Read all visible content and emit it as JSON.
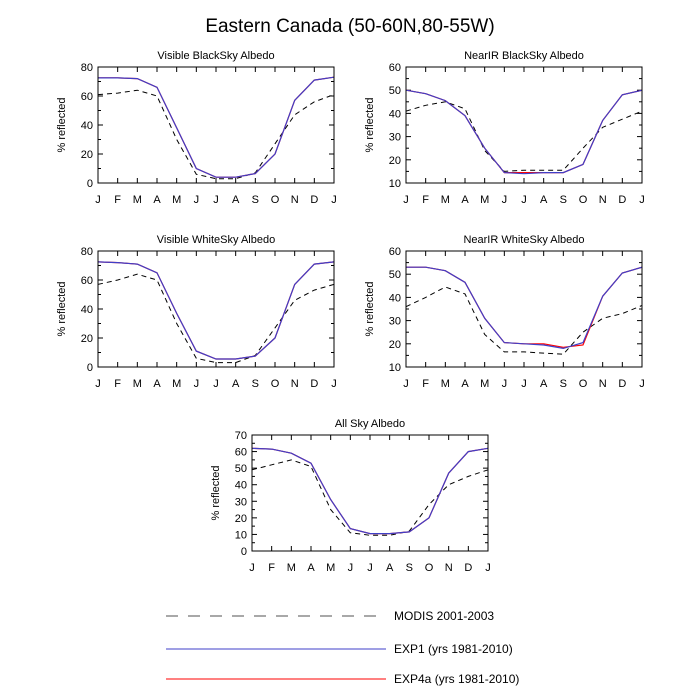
{
  "figure": {
    "title": "Eastern Canada (50-60N,80-55W)"
  },
  "legend": [
    {
      "label": "MODIS 2001-2003",
      "color": "#000000",
      "dash": true
    },
    {
      "label": "EXP1 (yrs 1981-2010)",
      "color": "#3f3fc8",
      "dash": false
    },
    {
      "label": "EXP4a (yrs 1981-2010)",
      "color": "#ff0000",
      "dash": false
    }
  ],
  "chart_data": [
    {
      "type": "line",
      "title": "Visible BlackSky Albedo",
      "ylabel": "% reflected",
      "categories": [
        "J",
        "F",
        "M",
        "A",
        "M",
        "J",
        "J",
        "A",
        "S",
        "O",
        "N",
        "D",
        "J"
      ],
      "ylim": [
        0,
        80
      ],
      "yticks": [
        0,
        20,
        40,
        60,
        80
      ],
      "series": [
        {
          "name": "MODIS 2001-2003",
          "color": "#000000",
          "dash": true,
          "values": [
            61,
            62,
            64,
            60,
            30,
            6,
            3,
            3,
            7,
            27,
            47,
            56,
            61
          ]
        },
        {
          "name": "EXP4a (yrs 1981-2010)",
          "color": "#ff0000",
          "dash": false,
          "values": [
            72.5,
            72.5,
            72,
            66,
            38,
            10,
            4,
            4,
            6.5,
            20,
            57,
            71,
            73
          ]
        },
        {
          "name": "EXP1 (yrs 1981-2010)",
          "color": "#3f3fc8",
          "dash": false,
          "values": [
            72.5,
            72.5,
            72,
            66,
            38,
            10,
            4,
            4,
            6.5,
            20,
            57,
            71,
            73
          ]
        }
      ]
    },
    {
      "type": "line",
      "title": "NearIR BlackSky Albedo",
      "ylabel": "% reflected",
      "categories": [
        "J",
        "F",
        "M",
        "A",
        "M",
        "J",
        "J",
        "A",
        "S",
        "O",
        "N",
        "D",
        "J"
      ],
      "ylim": [
        10,
        60
      ],
      "yticks": [
        10,
        20,
        30,
        40,
        50,
        60
      ],
      "series": [
        {
          "name": "MODIS 2001-2003",
          "color": "#000000",
          "dash": true,
          "values": [
            41,
            43.5,
            45,
            42,
            24,
            15,
            15.5,
            15.5,
            15.5,
            25,
            34,
            37.5,
            41
          ]
        },
        {
          "name": "EXP4a (yrs 1981-2010)",
          "color": "#ff0000",
          "dash": false,
          "values": [
            50,
            48.5,
            45.5,
            39,
            25,
            14.5,
            14.5,
            14.5,
            14.5,
            18,
            37,
            48,
            50
          ]
        },
        {
          "name": "EXP1 (yrs 1981-2010)",
          "color": "#3f3fc8",
          "dash": false,
          "values": [
            50,
            48.5,
            45.5,
            39,
            25,
            14.5,
            14,
            14.5,
            14.5,
            18,
            37,
            48,
            50
          ]
        }
      ]
    },
    {
      "type": "line",
      "title": "Visible WhiteSky Albedo",
      "ylabel": "% reflected",
      "categories": [
        "J",
        "F",
        "M",
        "A",
        "M",
        "J",
        "J",
        "A",
        "S",
        "O",
        "N",
        "D",
        "J"
      ],
      "ylim": [
        0,
        80
      ],
      "yticks": [
        0,
        20,
        40,
        60,
        80
      ],
      "series": [
        {
          "name": "MODIS 2001-2003",
          "color": "#000000",
          "dash": true,
          "values": [
            57,
            60,
            64,
            60,
            30,
            6,
            3,
            3,
            8,
            27,
            46,
            53,
            57
          ]
        },
        {
          "name": "EXP4a (yrs 1981-2010)",
          "color": "#ff0000",
          "dash": false,
          "values": [
            72.5,
            72,
            71,
            65,
            37,
            11,
            5.5,
            5.5,
            7.5,
            20,
            57,
            71,
            72.5
          ]
        },
        {
          "name": "EXP1 (yrs 1981-2010)",
          "color": "#3f3fc8",
          "dash": false,
          "values": [
            72.5,
            72,
            71,
            65,
            37,
            11,
            5.5,
            5.5,
            7.5,
            20,
            57,
            71,
            72.5
          ]
        }
      ]
    },
    {
      "type": "line",
      "title": "NearIR WhiteSky Albedo",
      "ylabel": "% reflected",
      "categories": [
        "J",
        "F",
        "M",
        "A",
        "M",
        "J",
        "J",
        "A",
        "S",
        "O",
        "N",
        "D",
        "J"
      ],
      "ylim": [
        10,
        60
      ],
      "yticks": [
        10,
        20,
        30,
        40,
        50,
        60
      ],
      "series": [
        {
          "name": "MODIS 2001-2003",
          "color": "#000000",
          "dash": true,
          "values": [
            36,
            40,
            44.5,
            41.5,
            24,
            16.5,
            16.5,
            16,
            15.5,
            25,
            31,
            33,
            36.5
          ]
        },
        {
          "name": "EXP4a (yrs 1981-2010)",
          "color": "#ff0000",
          "dash": false,
          "values": [
            53,
            53,
            51.5,
            46.5,
            31,
            20.5,
            20,
            20,
            18.5,
            19.5,
            40.5,
            50.5,
            53
          ]
        },
        {
          "name": "EXP1 (yrs 1981-2010)",
          "color": "#3f3fc8",
          "dash": false,
          "values": [
            53,
            53,
            51.5,
            46.5,
            31,
            20.5,
            20,
            19.5,
            18,
            20.5,
            40.5,
            50.5,
            53
          ]
        }
      ]
    },
    {
      "type": "line",
      "title": "All Sky Albedo",
      "ylabel": "% reflected",
      "categories": [
        "J",
        "F",
        "M",
        "A",
        "M",
        "J",
        "J",
        "A",
        "S",
        "O",
        "N",
        "D",
        "J"
      ],
      "ylim": [
        0,
        70
      ],
      "yticks": [
        0,
        10,
        20,
        30,
        40,
        50,
        60,
        70
      ],
      "series": [
        {
          "name": "MODIS 2001-2003",
          "color": "#000000",
          "dash": true,
          "values": [
            49,
            52,
            55,
            51,
            25,
            11,
            9.5,
            9.5,
            12,
            28,
            40,
            45,
            49
          ]
        },
        {
          "name": "EXP4a (yrs 1981-2010)",
          "color": "#ff0000",
          "dash": false,
          "values": [
            62,
            61.5,
            59,
            53,
            31,
            13.5,
            10.5,
            10.5,
            11.5,
            20,
            47,
            60,
            62
          ]
        },
        {
          "name": "EXP1 (yrs 1981-2010)",
          "color": "#3f3fc8",
          "dash": false,
          "values": [
            62,
            61.5,
            59,
            53,
            31,
            13.5,
            10.5,
            10.5,
            11.5,
            20,
            47,
            60,
            62
          ]
        }
      ]
    }
  ]
}
